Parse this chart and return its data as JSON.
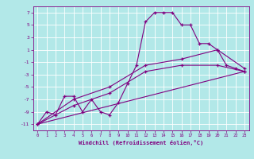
{
  "xlabel": "Windchill (Refroidissement éolien,°C)",
  "ylabel": "",
  "bg_color": "#b2e8e8",
  "line_color": "#800080",
  "grid_color": "#ffffff",
  "ylim": [
    -12,
    8
  ],
  "xlim": [
    -0.5,
    23.5
  ],
  "yticks": [
    -11,
    -9,
    -7,
    -5,
    -3,
    -1,
    1,
    3,
    5,
    7
  ],
  "xticks": [
    0,
    1,
    2,
    3,
    4,
    5,
    6,
    7,
    8,
    9,
    10,
    11,
    12,
    13,
    14,
    15,
    16,
    17,
    18,
    19,
    20,
    21,
    22,
    23
  ],
  "series": [
    {
      "x": [
        0,
        1,
        2,
        3,
        4,
        5,
        6,
        7,
        8,
        9,
        10,
        11,
        12,
        13,
        14,
        15,
        16,
        17,
        18,
        19,
        20,
        21,
        22,
        23
      ],
      "y": [
        -11,
        -9,
        -9.5,
        -6.5,
        -6.5,
        -9,
        -7,
        -9,
        -9.5,
        -7.5,
        -4.5,
        -1.5,
        5.5,
        7,
        7,
        7,
        5,
        5,
        2,
        2,
        1,
        -1.5,
        -2,
        -2.5
      ]
    },
    {
      "x": [
        0,
        4,
        8,
        12,
        16,
        20,
        23
      ],
      "y": [
        -11,
        -8,
        -6,
        -2.5,
        -1.5,
        -1.5,
        -2.5
      ]
    },
    {
      "x": [
        0,
        4,
        8,
        12,
        16,
        20,
        23
      ],
      "y": [
        -11,
        -7,
        -5,
        -1.5,
        -0.5,
        1,
        -2
      ]
    },
    {
      "x": [
        0,
        23
      ],
      "y": [
        -11,
        -2.5
      ]
    }
  ]
}
